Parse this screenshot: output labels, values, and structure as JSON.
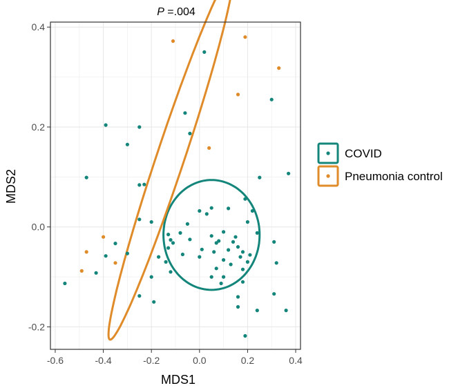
{
  "chart_data": {
    "type": "scatter",
    "title_italic": "P",
    "title_rest": " =.004",
    "xlabel": "MDS1",
    "ylabel": "MDS2",
    "xlim": [
      -0.62,
      0.42
    ],
    "ylim": [
      -0.245,
      0.41
    ],
    "x_ticks": [
      -0.6,
      -0.4,
      -0.2,
      0.0,
      0.2,
      0.4
    ],
    "x_tick_labels": [
      "-0.6",
      "-0.4",
      "-0.2",
      "0.0",
      "0.2",
      "0.4"
    ],
    "y_ticks": [
      -0.2,
      0.0,
      0.2,
      0.4
    ],
    "y_tick_labels": [
      "-0.2",
      "0.0",
      "0.2",
      "0.4"
    ],
    "grid": true,
    "legend_position": "right",
    "series": [
      {
        "name": "COVID",
        "color": "#14857a",
        "points": [
          [
            0.02,
            0.35
          ],
          [
            -0.39,
            0.204
          ],
          [
            -0.25,
            0.2
          ],
          [
            -0.3,
            0.165
          ],
          [
            -0.06,
            0.228
          ],
          [
            -0.04,
            0.187
          ],
          [
            0.3,
            0.255
          ],
          [
            0.37,
            0.107
          ],
          [
            -0.47,
            0.099
          ],
          [
            0.25,
            0.099
          ],
          [
            -0.25,
            0.084
          ],
          [
            -0.23,
            0.085
          ],
          [
            0.05,
            0.038
          ],
          [
            0.19,
            0.056
          ],
          [
            0.22,
            0.032
          ],
          [
            0.0,
            0.032
          ],
          [
            0.03,
            0.026
          ],
          [
            0.12,
            0.037
          ],
          [
            -0.25,
            0.015
          ],
          [
            -0.2,
            0.01
          ],
          [
            -0.05,
            0.006
          ],
          [
            -0.13,
            -0.015
          ],
          [
            -0.12,
            -0.026
          ],
          [
            -0.11,
            -0.032
          ],
          [
            -0.13,
            -0.042
          ],
          [
            -0.3,
            -0.053
          ],
          [
            -0.35,
            -0.033
          ],
          [
            0.2,
            0.01
          ],
          [
            0.24,
            -0.012
          ],
          [
            -0.08,
            -0.012
          ],
          [
            -0.04,
            -0.025
          ],
          [
            0.1,
            -0.01
          ],
          [
            0.15,
            -0.02
          ],
          [
            0.08,
            -0.028
          ],
          [
            0.14,
            -0.03
          ],
          [
            0.07,
            -0.032
          ],
          [
            0.05,
            -0.018
          ],
          [
            0.12,
            -0.046
          ],
          [
            0.01,
            -0.045
          ],
          [
            0.06,
            -0.05
          ],
          [
            0.16,
            -0.04
          ],
          [
            0.18,
            -0.05
          ],
          [
            0.21,
            -0.056
          ],
          [
            -0.07,
            -0.055
          ],
          [
            0.31,
            -0.03
          ],
          [
            0.0,
            -0.06
          ],
          [
            0.1,
            -0.066
          ],
          [
            0.17,
            -0.06
          ],
          [
            -0.17,
            -0.06
          ],
          [
            -0.14,
            -0.07
          ],
          [
            0.13,
            -0.075
          ],
          [
            0.2,
            -0.07
          ],
          [
            -0.12,
            -0.09
          ],
          [
            0.07,
            -0.083
          ],
          [
            0.18,
            -0.085
          ],
          [
            0.32,
            -0.072
          ],
          [
            0.05,
            -0.1
          ],
          [
            0.1,
            -0.1
          ],
          [
            0.18,
            -0.11
          ],
          [
            0.09,
            -0.113
          ],
          [
            -0.2,
            -0.1
          ],
          [
            -0.43,
            -0.092
          ],
          [
            -0.56,
            -0.113
          ],
          [
            -0.25,
            -0.138
          ],
          [
            0.31,
            -0.134
          ],
          [
            0.16,
            -0.14
          ],
          [
            -0.19,
            -0.15
          ],
          [
            0.16,
            -0.16
          ],
          [
            0.24,
            -0.167
          ],
          [
            0.36,
            -0.167
          ],
          [
            0.19,
            -0.218
          ],
          [
            -0.39,
            -0.058
          ]
        ]
      },
      {
        "name": "Pneumonia control",
        "color": "#e08b2a",
        "points": [
          [
            -0.11,
            0.372
          ],
          [
            0.19,
            0.38
          ],
          [
            0.33,
            0.318
          ],
          [
            0.16,
            0.265
          ],
          [
            0.04,
            0.158
          ],
          [
            -0.4,
            -0.02
          ],
          [
            -0.47,
            -0.05
          ],
          [
            -0.35,
            -0.072
          ],
          [
            -0.49,
            -0.088
          ]
        ]
      }
    ],
    "ellipses": [
      {
        "series": "COVID",
        "cx": 0.05,
        "cy": -0.016,
        "rx": 0.2,
        "ry": 0.11,
        "angle_deg": 0
      },
      {
        "series": "Pneumonia control",
        "cx": -0.12,
        "cy": 0.14,
        "rx": 0.445,
        "ry": 0.05,
        "angle_deg": 55
      }
    ]
  }
}
